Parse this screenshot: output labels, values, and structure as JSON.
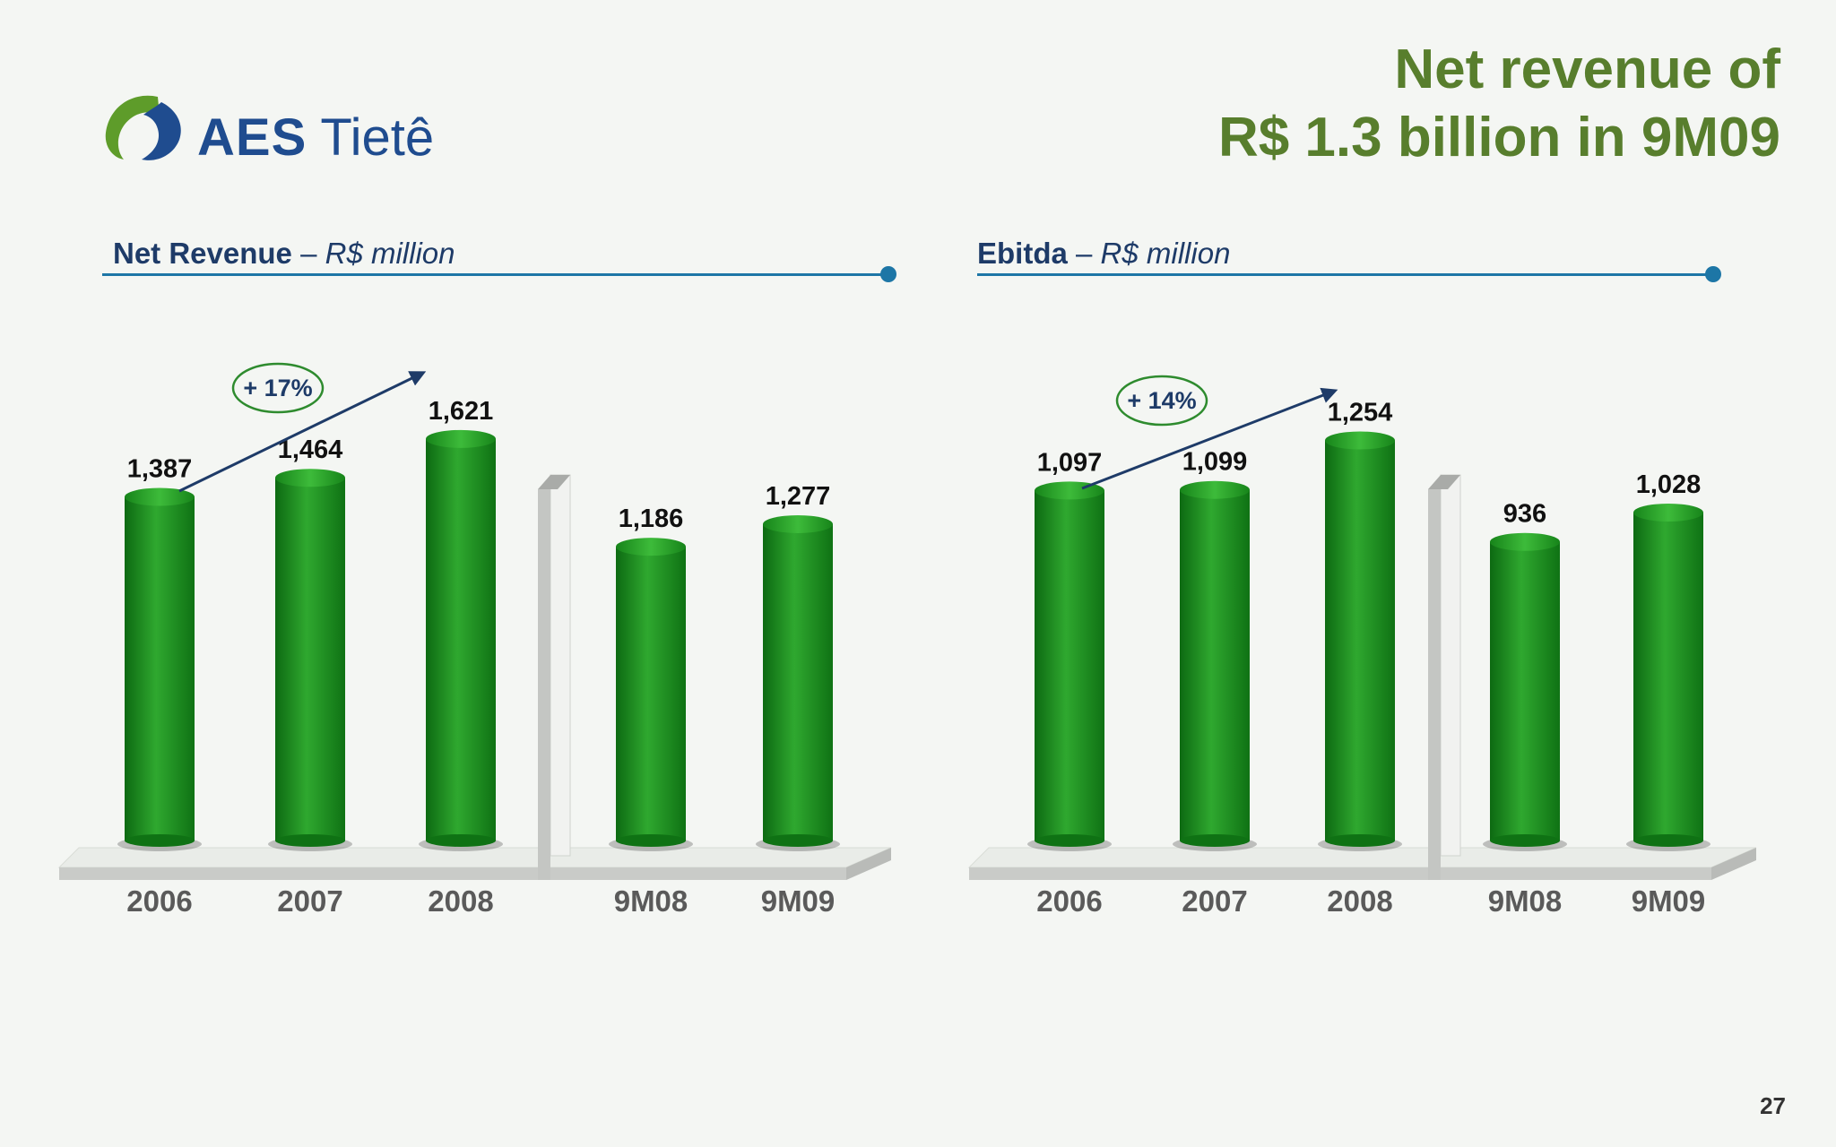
{
  "logo": {
    "brand_bold": "AES",
    "brand_rest": " Tietê"
  },
  "title": {
    "line1": "Net revenue of",
    "line2": "R$ 1.3 billion in 9M09"
  },
  "page_number": "27",
  "sections": [
    {
      "name": "Net Revenue",
      "sep": " – ",
      "unit": "R$ million"
    },
    {
      "name": "Ebitda",
      "sep": " – ",
      "unit": "R$ million"
    }
  ],
  "colors": {
    "bar": "#1f8f1f",
    "title": "#587e2d",
    "navy": "#1e3b68",
    "rule": "#1d76a6",
    "badge_border": "#2e8b2e"
  },
  "chart_data": [
    {
      "type": "bar",
      "title": "Net Revenue – R$ million",
      "categories": [
        "2006",
        "2007",
        "2008",
        "9M08",
        "9M09"
      ],
      "values": [
        1387,
        1464,
        1621,
        1186,
        1277
      ],
      "value_labels": [
        "1,387",
        "1,464",
        "1,621",
        "1,186",
        "1,277"
      ],
      "growth_label": "+ 17%",
      "ylim": [
        0,
        1700
      ],
      "grid": false
    },
    {
      "type": "bar",
      "title": "Ebitda – R$ million",
      "categories": [
        "2006",
        "2007",
        "2008",
        "9M08",
        "9M09"
      ],
      "values": [
        1097,
        1099,
        1254,
        936,
        1028
      ],
      "value_labels": [
        "1,097",
        "1,099",
        "1,254",
        "936",
        "1,028"
      ],
      "growth_label": "+ 14%",
      "ylim": [
        0,
        1320
      ],
      "grid": false
    }
  ]
}
